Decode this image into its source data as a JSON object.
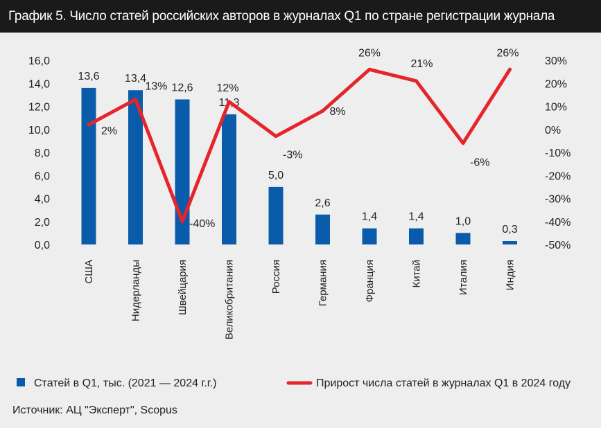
{
  "title": "График 5. Число статей российских авторов в журналах Q1 по стране регистрации журнала",
  "source": "Источник: АЦ \"Эксперт\", Scopus",
  "colors": {
    "bar": "#0a5cab",
    "line": "#e5242b",
    "background": "#eeeeee",
    "title_background": "#1a1a1a"
  },
  "chart_data": {
    "type": "bar",
    "categories": [
      "США",
      "Нидерланды",
      "Швейцария",
      "Великобритания",
      "Россия",
      "Германия",
      "Франция",
      "Китай",
      "Италия",
      "Индия"
    ],
    "series": [
      {
        "name": "Статей в Q1, тыс. (2021 — 2024 г.г.)",
        "type": "bar",
        "axis": "left",
        "values": [
          13.6,
          13.4,
          12.6,
          11.3,
          5.0,
          2.6,
          1.4,
          1.4,
          1.0,
          0.3
        ],
        "labels": [
          "13,6",
          "13,4",
          "12,6",
          "11,3",
          "5,0",
          "2,6",
          "1,4",
          "1,4",
          "1,0",
          "0,3"
        ]
      },
      {
        "name": "Прирост числа статей в журналах Q1 в 2024 году",
        "type": "line",
        "axis": "right",
        "values": [
          2,
          13,
          -40,
          12,
          -3,
          8,
          26,
          21,
          -6,
          26
        ],
        "labels": [
          "2%",
          "13%",
          "-40%",
          "12%",
          "-3%",
          "8%",
          "26%",
          "21%",
          "-6%",
          "26%"
        ]
      }
    ],
    "y_left": {
      "range": [
        0,
        16
      ],
      "ticks": [
        0,
        2,
        4,
        6,
        8,
        10,
        12,
        14,
        16
      ],
      "tick_labels": [
        "0,0",
        "2,0",
        "4,0",
        "6,0",
        "8,0",
        "10,0",
        "12,0",
        "14,0",
        "16,0"
      ]
    },
    "y_right": {
      "range": [
        -50,
        30
      ],
      "ticks": [
        -50,
        -40,
        -30,
        -20,
        -10,
        0,
        10,
        20,
        30
      ],
      "tick_labels": [
        "-50%",
        "-40%",
        "-30%",
        "-20%",
        "-10%",
        "0%",
        "10%",
        "20%",
        "30%"
      ]
    },
    "grid": false,
    "legend_position": "bottom"
  }
}
